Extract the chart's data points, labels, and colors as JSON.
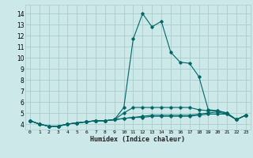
{
  "xlabel": "Humidex (Indice chaleur)",
  "bg_color": "#cce8e8",
  "grid_color": "#aacccc",
  "line_color": "#006666",
  "xlim": [
    -0.5,
    23.5
  ],
  "ylim": [
    3.5,
    14.8
  ],
  "xticks": [
    0,
    1,
    2,
    3,
    4,
    5,
    6,
    7,
    8,
    9,
    10,
    11,
    12,
    13,
    14,
    15,
    16,
    17,
    18,
    19,
    20,
    21,
    22,
    23
  ],
  "yticks": [
    4,
    5,
    6,
    7,
    8,
    9,
    10,
    11,
    12,
    13,
    14
  ],
  "series": [
    [
      4.3,
      4.0,
      3.8,
      3.8,
      4.0,
      4.1,
      4.2,
      4.3,
      4.3,
      4.4,
      5.5,
      11.7,
      14.0,
      12.8,
      13.3,
      10.5,
      9.6,
      9.5,
      8.3,
      5.3,
      5.2,
      5.0,
      4.4,
      4.8
    ],
    [
      4.3,
      4.0,
      3.8,
      3.8,
      4.0,
      4.1,
      4.2,
      4.3,
      4.3,
      4.4,
      5.0,
      5.5,
      5.5,
      5.5,
      5.5,
      5.5,
      5.5,
      5.5,
      5.3,
      5.2,
      5.2,
      5.0,
      4.4,
      4.8
    ],
    [
      4.3,
      4.0,
      3.8,
      3.8,
      4.0,
      4.1,
      4.2,
      4.3,
      4.3,
      4.4,
      4.5,
      4.6,
      4.7,
      4.8,
      4.8,
      4.8,
      4.8,
      4.8,
      4.9,
      5.0,
      5.1,
      4.9,
      4.4,
      4.8
    ],
    [
      4.3,
      4.0,
      3.8,
      3.8,
      4.0,
      4.1,
      4.2,
      4.3,
      4.3,
      4.4,
      4.5,
      4.6,
      4.6,
      4.7,
      4.7,
      4.7,
      4.7,
      4.7,
      4.8,
      4.9,
      4.9,
      4.9,
      4.4,
      4.8
    ]
  ]
}
